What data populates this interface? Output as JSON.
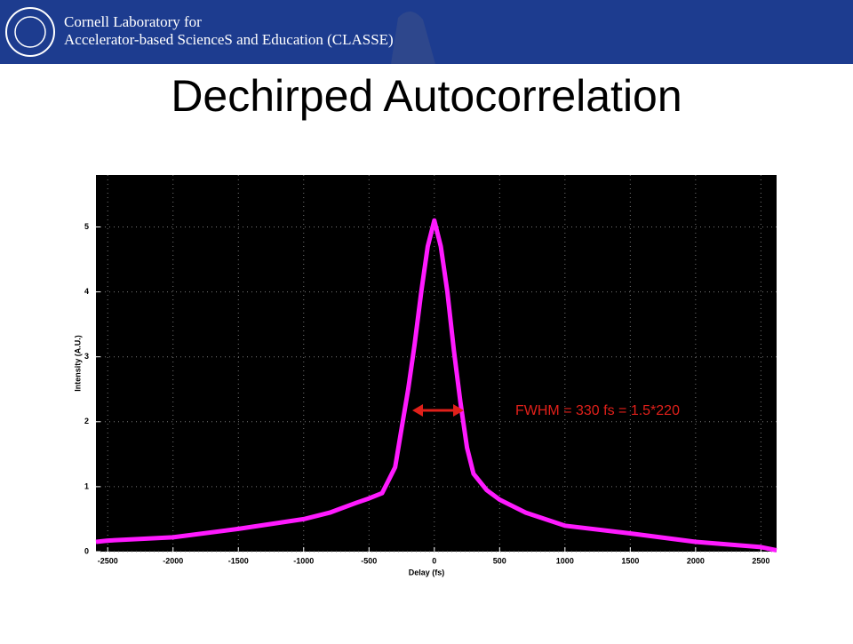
{
  "header": {
    "line1": "Cornell Laboratory for",
    "line2": "Accelerator-based ScienceS and Education (CLASSE)"
  },
  "title": "Dechirped Autocorrelation",
  "chart_data": {
    "type": "line",
    "x_label": "Delay (fs)",
    "y_label": "Intensity (A.U.)",
    "x": [
      -2590,
      -2500,
      -2000,
      -1500,
      -1000,
      -800,
      -600,
      -500,
      -400,
      -300,
      -250,
      -200,
      -150,
      -100,
      -50,
      0,
      50,
      100,
      150,
      200,
      250,
      300,
      400,
      500,
      700,
      1000,
      1500,
      2000,
      2500,
      2620
    ],
    "values": [
      0.15,
      0.17,
      0.22,
      0.35,
      0.5,
      0.6,
      0.75,
      0.82,
      0.9,
      1.3,
      1.9,
      2.5,
      3.2,
      4.0,
      4.7,
      5.1,
      4.7,
      4.0,
      3.1,
      2.3,
      1.6,
      1.2,
      0.95,
      0.8,
      0.6,
      0.4,
      0.28,
      0.15,
      0.07,
      0.02
    ],
    "color": "#ff1aff",
    "xlim": [
      -2590,
      2620
    ],
    "ylim": [
      0,
      5.8
    ],
    "xticks": [
      -2500,
      -2000,
      -1500,
      -1000,
      -500,
      0,
      500,
      1000,
      1500,
      2000,
      2500
    ],
    "yticks": [
      0,
      1,
      2,
      3,
      4,
      5
    ],
    "grid": true,
    "annotation": "FWHM = 330 fs = 1.5*220"
  }
}
